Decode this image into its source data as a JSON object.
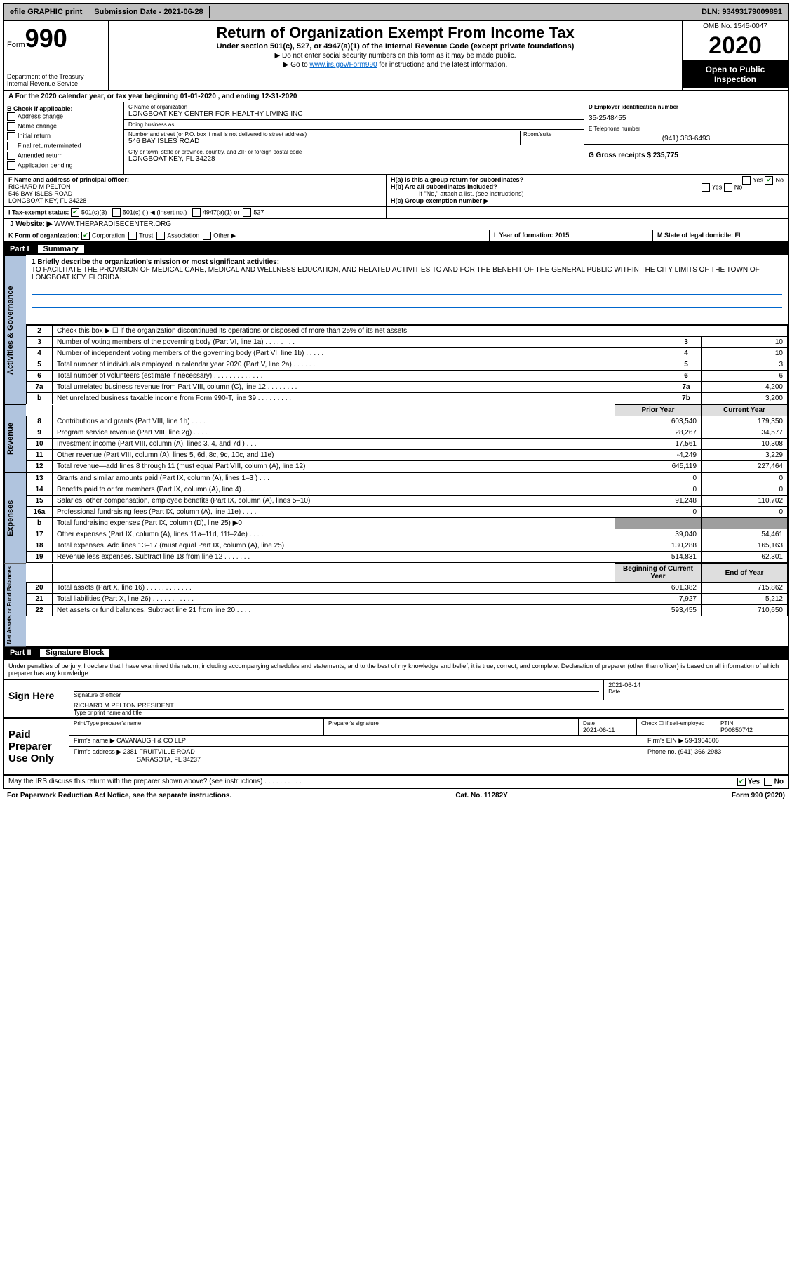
{
  "topbar": {
    "efile": "efile GRAPHIC print",
    "submission_label": "Submission Date - 2021-06-28",
    "dln": "DLN: 93493179009891"
  },
  "header": {
    "form_label": "Form",
    "form_num": "990",
    "dept": "Department of the Treasury\nInternal Revenue Service",
    "title": "Return of Organization Exempt From Income Tax",
    "sub1": "Under section 501(c), 527, or 4947(a)(1) of the Internal Revenue Code (except private foundations)",
    "sub2": "▶ Do not enter social security numbers on this form as it may be made public.",
    "sub3_pre": "▶ Go to ",
    "sub3_link": "www.irs.gov/Form990",
    "sub3_post": " for instructions and the latest information.",
    "omb": "OMB No. 1545-0047",
    "year": "2020",
    "open": "Open to Public Inspection"
  },
  "row_a": "A For the 2020 calendar year, or tax year beginning 01-01-2020    , and ending 12-31-2020",
  "col_b": {
    "title": "B Check if applicable:",
    "opts": [
      "Address change",
      "Name change",
      "Initial return",
      "Final return/terminated",
      "Amended return",
      "Application pending"
    ]
  },
  "col_c": {
    "name_label": "C Name of organization",
    "name": "LONGBOAT KEY CENTER FOR HEALTHY LIVING INC",
    "dba_label": "Doing business as",
    "dba": "",
    "addr_label": "Number and street (or P.O. box if mail is not delivered to street address)",
    "room_label": "Room/suite",
    "addr": "546 BAY ISLES ROAD",
    "city_label": "City or town, state or province, country, and ZIP or foreign postal code",
    "city": "LONGBOAT KEY, FL  34228"
  },
  "col_d": {
    "ein_label": "D Employer identification number",
    "ein": "35-2548455",
    "tel_label": "E Telephone number",
    "tel": "(941) 383-6493",
    "gross_label": "G Gross receipts $ 235,775"
  },
  "row_f": {
    "label": "F  Name and address of principal officer:",
    "name": "RICHARD M PELTON",
    "addr1": "546 BAY ISLES ROAD",
    "addr2": "LONGBOAT KEY, FL  34228"
  },
  "row_h": {
    "ha": "H(a)  Is this a group return for subordinates?",
    "ha_yes": "Yes",
    "ha_no": "No",
    "hb": "H(b)  Are all subordinates included?",
    "hb_note": "If \"No,\" attach a list. (see instructions)",
    "hc": "H(c)  Group exemption number ▶"
  },
  "row_i": {
    "label": "I  Tax-exempt status:",
    "o1": "501(c)(3)",
    "o2": "501(c) (   ) ◀ (insert no.)",
    "o3": "4947(a)(1) or",
    "o4": "527"
  },
  "row_j": {
    "label": "J  Website: ▶",
    "val": " WWW.THEPARADISECENTER.ORG"
  },
  "row_k": {
    "label": "K Form of organization:",
    "o1": "Corporation",
    "o2": "Trust",
    "o3": "Association",
    "o4": "Other ▶",
    "l": "L Year of formation: 2015",
    "m": "M State of legal domicile: FL"
  },
  "part1": {
    "num": "Part I",
    "title": "Summary"
  },
  "mission": {
    "label": "1  Briefly describe the organization's mission or most significant activities:",
    "text": "TO FACILITATE THE PROVISION OF MEDICAL CARE, MEDICAL AND WELLNESS EDUCATION, AND RELATED ACTIVITIES TO AND FOR THE BENEFIT OF THE GENERAL PUBLIC WITHIN THE CITY LIMITS OF THE TOWN OF LONGBOAT KEY, FLORIDA."
  },
  "gov_lines": [
    {
      "n": "2",
      "d": "Check this box ▶ ☐  if the organization discontinued its operations or disposed of more than 25% of its net assets.",
      "box": "",
      "v": ""
    },
    {
      "n": "3",
      "d": "Number of voting members of the governing body (Part VI, line 1a)   .    .    .    .    .    .    .    .",
      "box": "3",
      "v": "10"
    },
    {
      "n": "4",
      "d": "Number of independent voting members of the governing body (Part VI, line 1b)  .    .    .    .    .",
      "box": "4",
      "v": "10"
    },
    {
      "n": "5",
      "d": "Total number of individuals employed in calendar year 2020 (Part V, line 2a)  .    .    .    .    .    .",
      "box": "5",
      "v": "3"
    },
    {
      "n": "6",
      "d": "Total number of volunteers (estimate if necessary)    .    .    .    .    .    .    .    .    .    .    .    .    .",
      "box": "6",
      "v": "6"
    },
    {
      "n": "7a",
      "d": "Total unrelated business revenue from Part VIII, column (C), line 12  .    .    .    .    .    .    .    .",
      "box": "7a",
      "v": "4,200"
    },
    {
      "n": "b",
      "d": "Net unrelated business taxable income from Form 990-T, line 39   .    .    .    .    .    .    .    .    .",
      "box": "7b",
      "v": "3,200"
    }
  ],
  "rev_header": {
    "prior": "Prior Year",
    "cur": "Current Year"
  },
  "rev_lines": [
    {
      "n": "8",
      "d": "Contributions and grants (Part VIII, line 1h)   .    .    .    .",
      "p": "603,540",
      "c": "179,350"
    },
    {
      "n": "9",
      "d": "Program service revenue (Part VIII, line 2g)   .    .    .    .",
      "p": "28,267",
      "c": "34,577"
    },
    {
      "n": "10",
      "d": "Investment income (Part VIII, column (A), lines 3, 4, and 7d )   .    .    .",
      "p": "17,561",
      "c": "10,308"
    },
    {
      "n": "11",
      "d": "Other revenue (Part VIII, column (A), lines 5, 6d, 8c, 9c, 10c, and 11e)",
      "p": "-4,249",
      "c": "3,229"
    },
    {
      "n": "12",
      "d": "Total revenue—add lines 8 through 11 (must equal Part VIII, column (A), line 12)",
      "p": "645,119",
      "c": "227,464"
    }
  ],
  "exp_lines": [
    {
      "n": "13",
      "d": "Grants and similar amounts paid (Part IX, column (A), lines 1–3 )  .    .    .",
      "p": "0",
      "c": "0"
    },
    {
      "n": "14",
      "d": "Benefits paid to or for members (Part IX, column (A), line 4)   .    .    .",
      "p": "0",
      "c": "0"
    },
    {
      "n": "15",
      "d": "Salaries, other compensation, employee benefits (Part IX, column (A), lines 5–10)",
      "p": "91,248",
      "c": "110,702"
    },
    {
      "n": "16a",
      "d": "Professional fundraising fees (Part IX, column (A), line 11e)   .    .    .    .",
      "p": "0",
      "c": "0"
    },
    {
      "n": "b",
      "d": "Total fundraising expenses (Part IX, column (D), line 25) ▶0",
      "p": "",
      "c": "",
      "gray": true
    },
    {
      "n": "17",
      "d": "Other expenses (Part IX, column (A), lines 11a–11d, 11f–24e)   .    .    .    .",
      "p": "39,040",
      "c": "54,461"
    },
    {
      "n": "18",
      "d": "Total expenses. Add lines 13–17 (must equal Part IX, column (A), line 25)",
      "p": "130,288",
      "c": "165,163"
    },
    {
      "n": "19",
      "d": "Revenue less expenses. Subtract line 18 from line 12  .    .    .    .    .    .    .",
      "p": "514,831",
      "c": "62,301"
    }
  ],
  "na_header": {
    "prior": "Beginning of Current Year",
    "cur": "End of Year"
  },
  "na_lines": [
    {
      "n": "20",
      "d": "Total assets (Part X, line 16)  .    .    .    .    .    .    .    .    .    .    .    .",
      "p": "601,382",
      "c": "715,862"
    },
    {
      "n": "21",
      "d": "Total liabilities (Part X, line 26)  .    .    .    .    .    .    .    .    .    .    .",
      "p": "7,927",
      "c": "5,212"
    },
    {
      "n": "22",
      "d": "Net assets or fund balances. Subtract line 21 from line 20  .    .    .    .",
      "p": "593,455",
      "c": "710,650"
    }
  ],
  "part2": {
    "num": "Part II",
    "title": "Signature Block"
  },
  "declare": "Under penalties of perjury, I declare that I have examined this return, including accompanying schedules and statements, and to the best of my knowledge and belief, it is true, correct, and complete. Declaration of preparer (other than officer) is based on all information of which preparer has any knowledge.",
  "sign": {
    "left": "Sign Here",
    "sig_label": "Signature of officer",
    "date": "2021-06-14",
    "date_label": "Date",
    "name": "RICHARD M PELTON  PRESIDENT",
    "name_label": "Type or print name and title"
  },
  "paid": {
    "left": "Paid Preparer Use Only",
    "h1": "Print/Type preparer's name",
    "h2": "Preparer's signature",
    "h3": "Date",
    "date": "2021-06-11",
    "h4": "Check ☐ if self-employed",
    "h5": "PTIN",
    "ptin": "P00850742",
    "firm_label": "Firm's name    ▶",
    "firm": "CAVANAUGH & CO LLP",
    "ein_label": "Firm's EIN ▶",
    "ein": "59-1954606",
    "addr_label": "Firm's address ▶",
    "addr1": "2381 FRUITVILLE ROAD",
    "addr2": "SARASOTA, FL  34237",
    "phone_label": "Phone no.",
    "phone": "(941) 366-2983"
  },
  "discuss": {
    "q": "May the IRS discuss this return with the preparer shown above? (see instructions)   .    .    .    .    .    .    .    .    .    .",
    "yes": "Yes",
    "no": "No"
  },
  "footer": {
    "left": "For Paperwork Reduction Act Notice, see the separate instructions.",
    "mid": "Cat. No. 11282Y",
    "right": "Form 990 (2020)"
  },
  "side_labels": {
    "gov": "Activities & Governance",
    "rev": "Revenue",
    "exp": "Expenses",
    "na": "Net Assets or Fund Balances"
  }
}
